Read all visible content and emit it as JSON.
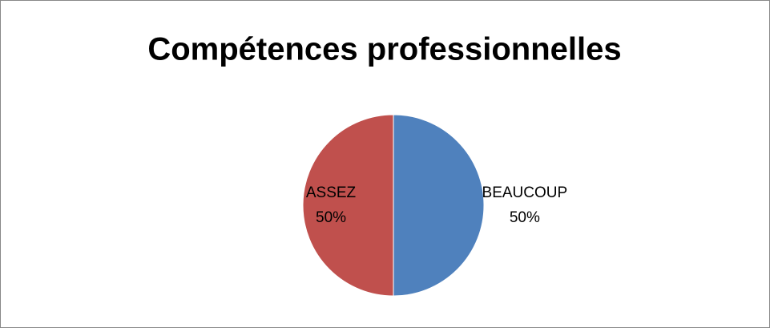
{
  "chart_data": {
    "type": "pie",
    "title": "Compétences professionnelles",
    "categories": [
      "BEAUCOUP",
      "ASSEZ"
    ],
    "values": [
      50,
      50
    ],
    "value_labels": [
      "50%",
      "50%"
    ],
    "colors": [
      "#4f81bd",
      "#c0504d"
    ]
  }
}
